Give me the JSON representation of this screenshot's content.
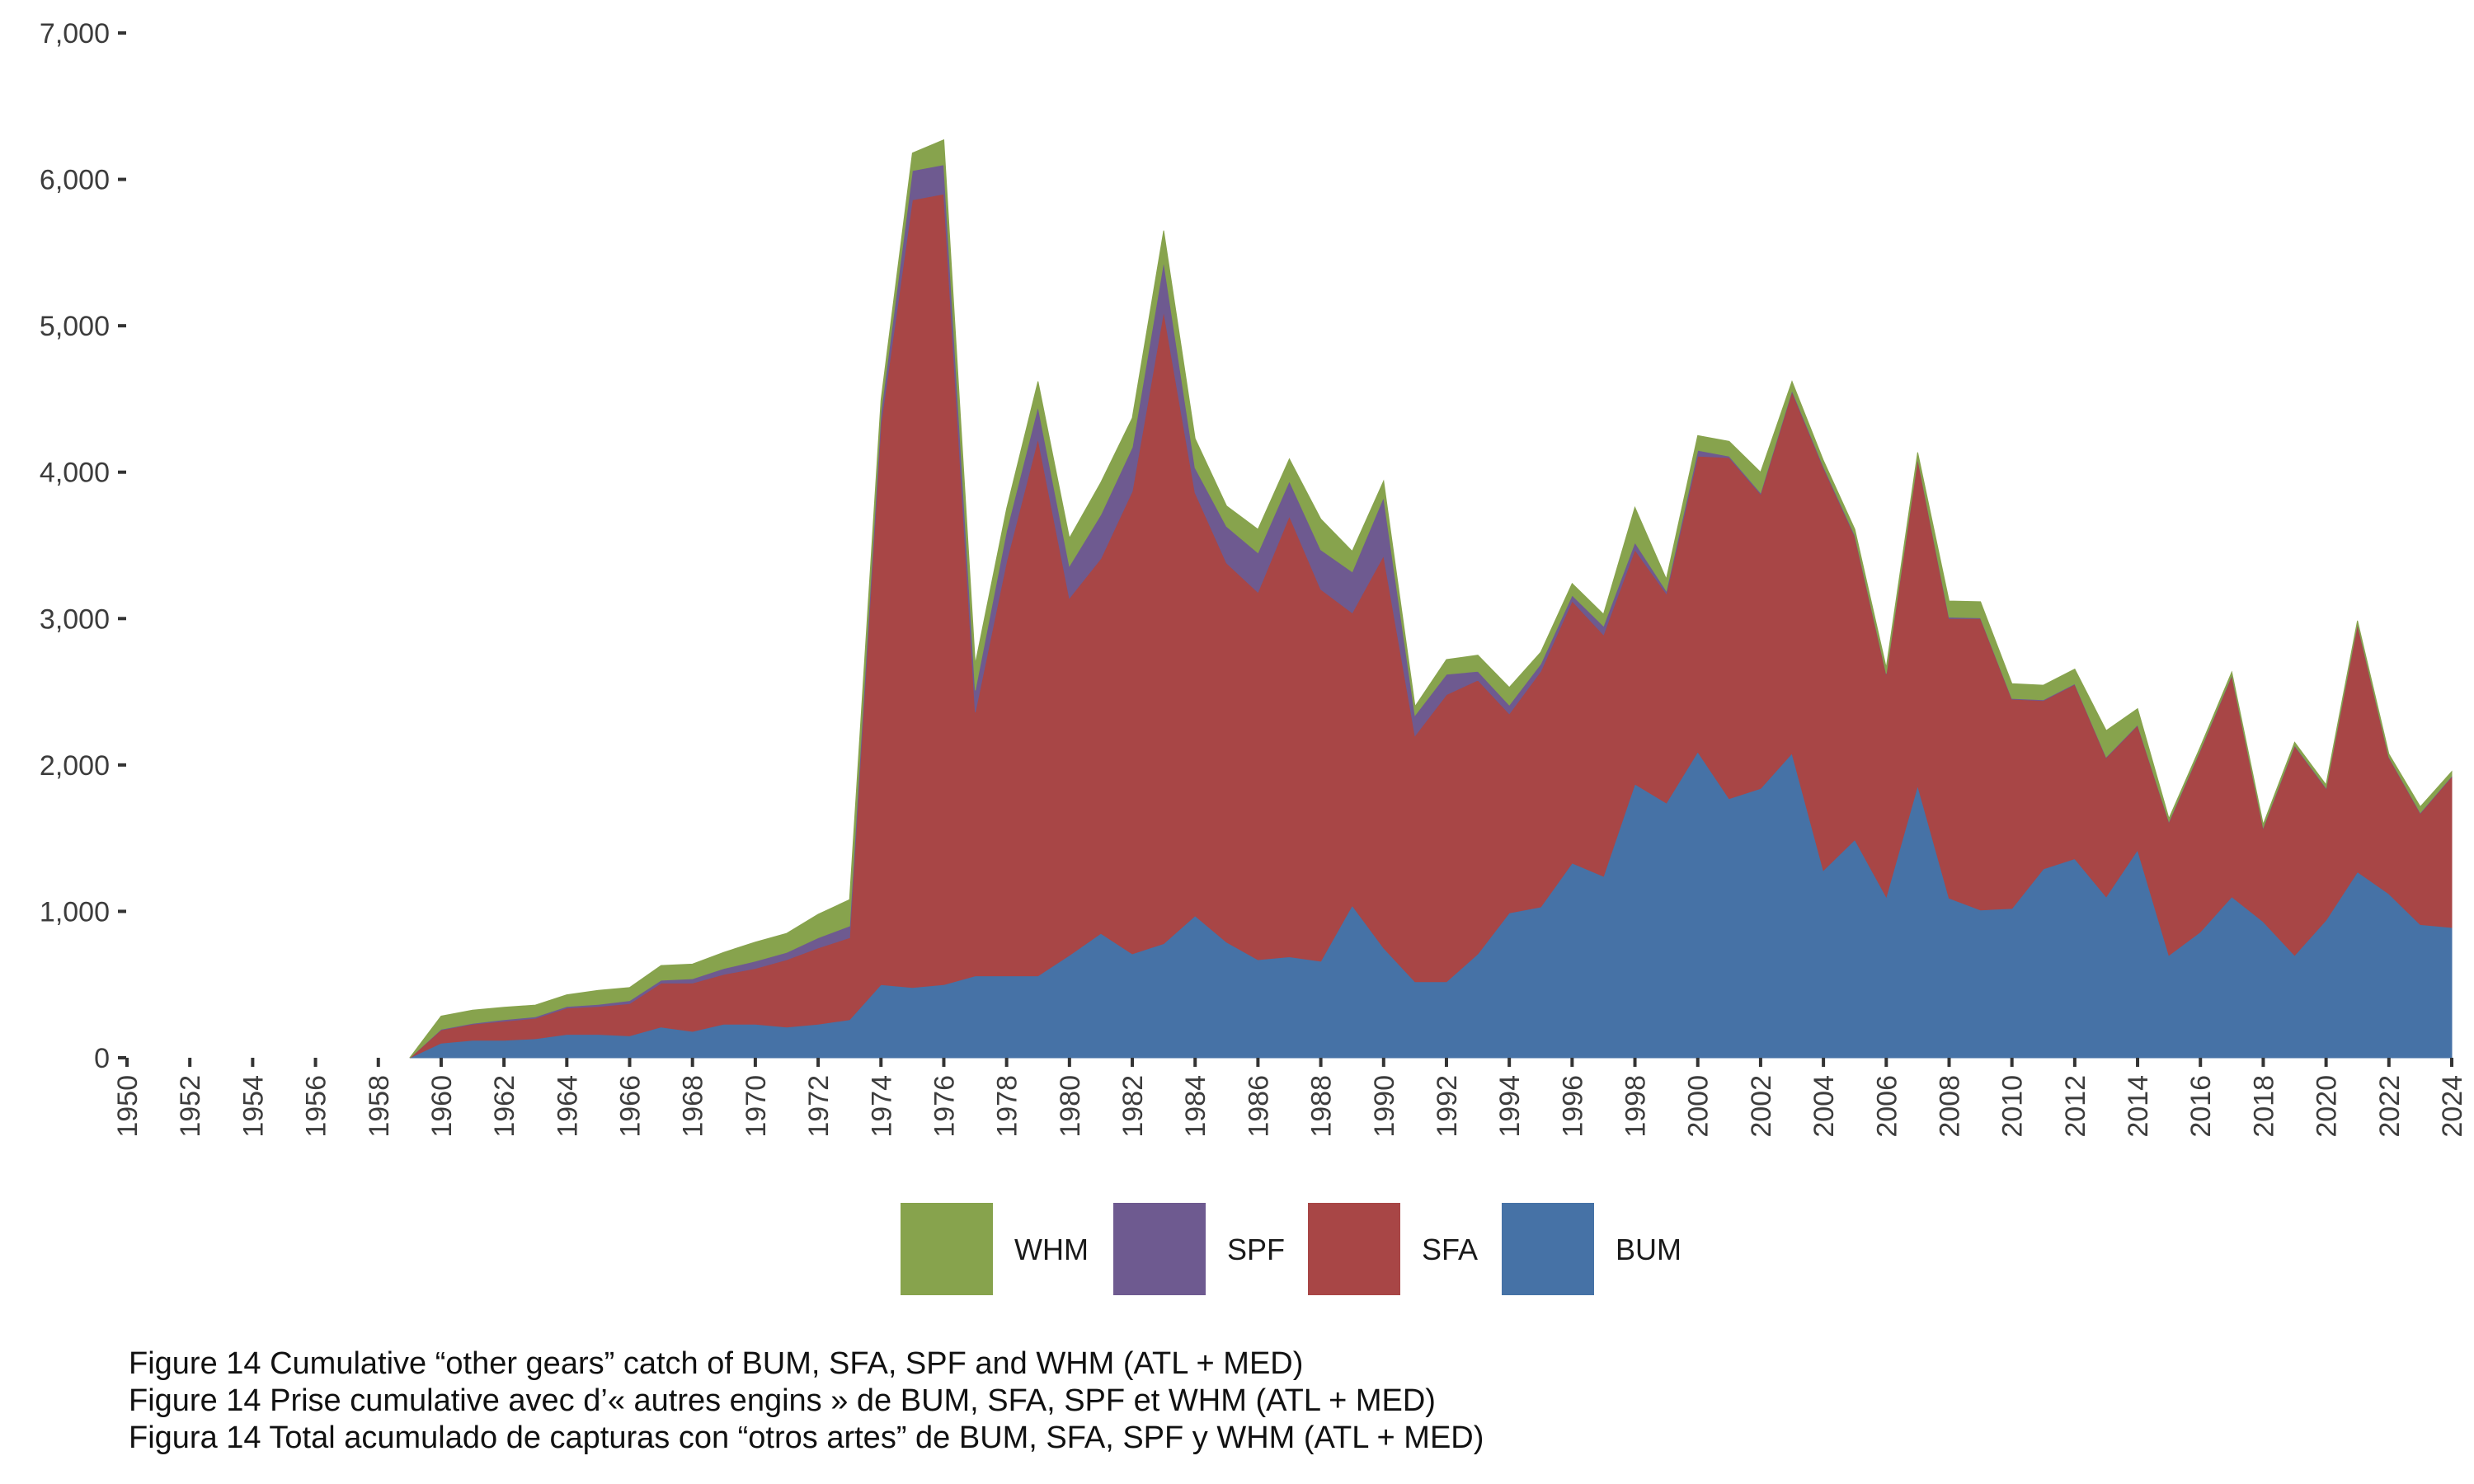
{
  "chart_data": {
    "type": "area",
    "stacked": true,
    "title": "",
    "xlabel": "",
    "ylabel": "",
    "ylim": [
      0,
      7000
    ],
    "xlim": [
      1950,
      2024
    ],
    "y_ticks": [
      0,
      1000,
      2000,
      3000,
      4000,
      5000,
      6000,
      7000
    ],
    "y_tick_labels": [
      "0",
      "1,000",
      "2,000",
      "3,000",
      "4,000",
      "5,000",
      "6,000",
      "7,000"
    ],
    "x_ticks": [
      1950,
      1952,
      1954,
      1956,
      1958,
      1960,
      1962,
      1964,
      1966,
      1968,
      1970,
      1972,
      1974,
      1976,
      1978,
      1980,
      1982,
      1984,
      1986,
      1988,
      1990,
      1992,
      1994,
      1996,
      1998,
      2000,
      2002,
      2004,
      2006,
      2008,
      2010,
      2012,
      2014,
      2016,
      2018,
      2020,
      2022,
      2024
    ],
    "x": [
      1959,
      1960,
      1961,
      1962,
      1963,
      1964,
      1965,
      1966,
      1967,
      1968,
      1969,
      1970,
      1971,
      1972,
      1973,
      1974,
      1975,
      1976,
      1977,
      1978,
      1979,
      1980,
      1981,
      1982,
      1983,
      1984,
      1985,
      1986,
      1987,
      1988,
      1989,
      1990,
      1991,
      1992,
      1993,
      1994,
      1995,
      1996,
      1997,
      1998,
      1999,
      2000,
      2001,
      2002,
      2003,
      2004,
      2005,
      2006,
      2007,
      2008,
      2009,
      2010,
      2011,
      2012,
      2013,
      2014,
      2015,
      2016,
      2017,
      2018,
      2019,
      2020,
      2021,
      2022,
      2023,
      2024
    ],
    "series": [
      {
        "name": "BUM",
        "color": "#4672a6",
        "values": [
          0,
          100,
          120,
          120,
          130,
          160,
          160,
          150,
          210,
          180,
          230,
          230,
          210,
          230,
          260,
          500,
          480,
          500,
          560,
          560,
          560,
          700,
          850,
          710,
          780,
          970,
          790,
          670,
          690,
          660,
          1040,
          750,
          520,
          520,
          710,
          990,
          1030,
          1330,
          1240,
          1870,
          1740,
          2090,
          1770,
          1840,
          2080,
          1280,
          1490,
          1100,
          1860,
          1090,
          1010,
          1020,
          1290,
          1360,
          1100,
          1420,
          700,
          860,
          1100,
          930,
          700,
          940,
          1270,
          1120,
          910,
          890
        ]
      },
      {
        "name": "SFA",
        "color": "#a84646",
        "values": [
          0,
          90,
          110,
          130,
          140,
          180,
          190,
          220,
          300,
          330,
          340,
          380,
          460,
          520,
          560,
          3830,
          5380,
          5400,
          1800,
          2830,
          3670,
          2440,
          2560,
          3160,
          4320,
          2890,
          2590,
          2510,
          3010,
          2540,
          2000,
          2680,
          1680,
          1960,
          1870,
          1360,
          1610,
          1790,
          1650,
          1600,
          1430,
          2020,
          2330,
          2010,
          2470,
          2750,
          2070,
          1520,
          2230,
          1910,
          1990,
          1430,
          1150,
          1190,
          950,
          850,
          910,
          1240,
          1510,
          640,
          1430,
          900,
          1690,
          930,
          760,
          1030
        ]
      },
      {
        "name": "SPF",
        "color": "#6e5a90",
        "values": [
          0,
          5,
          5,
          10,
          10,
          10,
          15,
          20,
          20,
          30,
          40,
          50,
          50,
          70,
          80,
          80,
          200,
          200,
          150,
          210,
          220,
          220,
          300,
          300,
          340,
          170,
          250,
          270,
          240,
          270,
          280,
          400,
          140,
          140,
          60,
          60,
          50,
          40,
          60,
          50,
          20,
          40,
          10,
          10,
          10,
          10,
          10,
          5,
          5,
          10,
          5,
          5,
          5,
          5,
          5,
          5,
          5,
          5,
          5,
          5,
          5,
          5,
          5,
          5,
          5,
          5
        ]
      },
      {
        "name": "WHM",
        "color": "#87a34d",
        "values": [
          0,
          90,
          90,
          85,
          80,
          80,
          95,
          90,
          100,
          100,
          110,
          130,
          130,
          160,
          180,
          80,
          120,
          170,
          180,
          150,
          170,
          190,
          220,
          200,
          210,
          200,
          140,
          160,
          150,
          210,
          140,
          110,
          60,
          100,
          110,
          120,
          80,
          80,
          80,
          240,
          80,
          100,
          100,
          140,
          60,
          40,
          40,
          40,
          40,
          110,
          110,
          100,
          100,
          100,
          180,
          110,
          20,
          20,
          20,
          20,
          20,
          20,
          20,
          20,
          40,
          30
        ]
      }
    ],
    "legend_position": "bottom-center",
    "legend_order": [
      "WHM",
      "SPF",
      "SFA",
      "BUM"
    ]
  },
  "captions": [
    "Figure 14 Cumulative “other gears” catch of BUM, SFA, SPF and WHM (ATL + MED)",
    "Figure 14 Prise cumulative avec d’« autres engins » de BUM, SFA, SPF et WHM (ATL + MED)",
    "Figura 14 Total acumulado de capturas con “otros artes” de BUM, SFA, SPF y WHM (ATL + MED)"
  ]
}
